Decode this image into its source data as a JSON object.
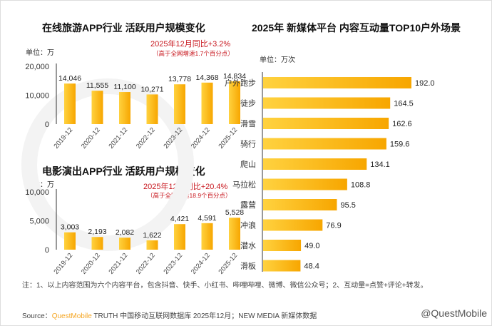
{
  "watermark": "QUESTMOBILE",
  "chart_data": [
    {
      "type": "bar",
      "title": "在线旅游APP行业 活跃用户规模变化",
      "unit": "单位：万",
      "categories": [
        "2019-12",
        "2020-12",
        "2021-12",
        "2022-12",
        "2023-12",
        "2024-12",
        "2025-12"
      ],
      "values": [
        14046,
        11555,
        11100,
        10271,
        13778,
        14368,
        14834
      ],
      "value_labels": [
        "14,046",
        "11,555",
        "11,100",
        "10,271",
        "13,778",
        "14,368",
        "14,834"
      ],
      "ylim": [
        0,
        20000
      ],
      "yticks": [
        "0",
        "10,000",
        "20,000"
      ],
      "highlight": "2025年12月同比+3.2%",
      "highlight_sub": "（高于全网增速1.7个百分点）",
      "bar_color": "#FDB813"
    },
    {
      "type": "bar",
      "title": "电影演出APP行业 活跃用户规模变化",
      "unit": "单位：万",
      "categories": [
        "2019-12",
        "2020-12",
        "2021-12",
        "2022-12",
        "2023-12",
        "2024-12",
        "2025-12"
      ],
      "values": [
        3003,
        2193,
        2082,
        1622,
        4421,
        4591,
        5528
      ],
      "value_labels": [
        "3,003",
        "2,193",
        "2,082",
        "1,622",
        "4,421",
        "4,591",
        "5,528"
      ],
      "ylim": [
        0,
        10000
      ],
      "yticks": [
        "0",
        "5,000",
        "10,000"
      ],
      "highlight": "2025年12月同比+20.4%",
      "highlight_sub": "（高于全网增速18.9个百分点）",
      "bar_color": "#FDB813"
    },
    {
      "type": "bar",
      "orientation": "horizontal",
      "title": "2025年 新媒体平台 内容互动量TOP10户外场景",
      "unit": "单位：万次",
      "categories": [
        "户外跑步",
        "徒步",
        "滑雪",
        "骑行",
        "爬山",
        "马拉松",
        "露营",
        "冲浪",
        "潜水",
        "滑板"
      ],
      "values": [
        192.0,
        164.5,
        162.6,
        159.6,
        134.1,
        108.8,
        95.5,
        76.9,
        49.0,
        48.4
      ],
      "value_labels": [
        "192.0",
        "164.5",
        "162.6",
        "159.6",
        "134.1",
        "108.8",
        "95.5",
        "76.9",
        "49.0",
        "48.4"
      ],
      "bar_color": "#FDB813"
    }
  ],
  "footer": {
    "note": "注：1、以上内容范围为六个内容平台，包含抖音、快手、小红书、哔哩哔哩、微博、微信公众号；2、互动量=点赞+评论+转发。",
    "source_prefix": "Source：",
    "source_brand": "QuestMobile",
    "source_rest": " TRUTH 中国移动互联网数据库 2025年12月；NEW MEDIA 新媒体数据",
    "credit": "@QuestMobile"
  }
}
